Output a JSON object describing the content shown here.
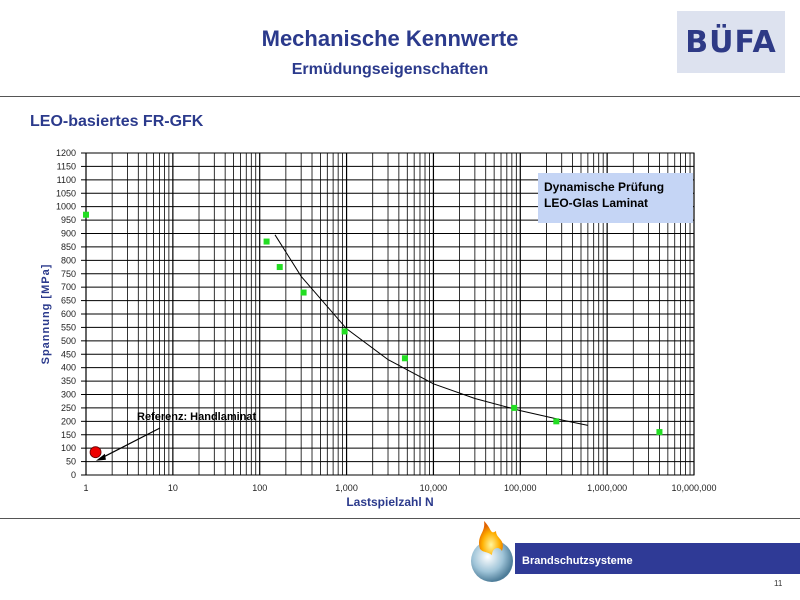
{
  "slide": {
    "title": "Mechanische  Kennwerte",
    "subtitle": "Ermüdungseigenschaften",
    "section_title": "LEO-basiertes FR-GFK",
    "logo_text": "BÜFA",
    "footer_text": "Brandschutzsysteme",
    "page_number": "11"
  },
  "colors": {
    "title": "#2b3a8c",
    "marker_green": "#22dd22",
    "reference_red": "#ee0000",
    "legend_bg": "#c5d5f5",
    "footer_bar": "#2f3a96"
  },
  "chart_data": {
    "type": "scatter",
    "x_scale": "log",
    "xlabel": "Lastspielzahl N",
    "ylabel": "Spannung [MPa]",
    "xlim": [
      1,
      10000000
    ],
    "ylim": [
      0,
      1200
    ],
    "x_ticks": [
      1,
      10,
      100,
      1000,
      10000,
      100000,
      1000000,
      10000000
    ],
    "x_tick_labels": [
      "1",
      "10",
      "100",
      "1,000",
      "10,000",
      "100,000",
      "1,000,000",
      "10,000,000"
    ],
    "y_ticks": [
      0,
      50,
      100,
      150,
      200,
      250,
      300,
      350,
      400,
      450,
      500,
      550,
      600,
      650,
      700,
      750,
      800,
      850,
      900,
      950,
      1000,
      1050,
      1100,
      1150,
      1200
    ],
    "grid": true,
    "legend_text": [
      "Dynamische Prüfung",
      "LEO-Glas  Laminat"
    ],
    "legend_position": "top-right",
    "series": [
      {
        "marker": "square",
        "color": "#22dd22",
        "points": [
          {
            "x": 1,
            "y": 970
          },
          {
            "x": 120,
            "y": 870
          },
          {
            "x": 170,
            "y": 775
          },
          {
            "x": 320,
            "y": 680
          },
          {
            "x": 950,
            "y": 535
          },
          {
            "x": 4700,
            "y": 435
          },
          {
            "x": 85000,
            "y": 250
          },
          {
            "x": 260000,
            "y": 200
          },
          {
            "x": 4000000,
            "y": 160
          }
        ]
      },
      {
        "marker": "circle",
        "color": "#ee0000",
        "points": [
          {
            "x": 1.07,
            "y": 85
          }
        ]
      }
    ],
    "trendline": {
      "type": "power",
      "points": [
        {
          "x": 150,
          "y": 895
        },
        {
          "x": 300,
          "y": 740
        },
        {
          "x": 1000,
          "y": 545
        },
        {
          "x": 3000,
          "y": 430
        },
        {
          "x": 10000,
          "y": 340
        },
        {
          "x": 30000,
          "y": 285
        },
        {
          "x": 100000,
          "y": 240
        },
        {
          "x": 300000,
          "y": 205
        },
        {
          "x": 600000,
          "y": 185
        }
      ]
    },
    "annotation": {
      "text": "Referenz: Handlaminat",
      "arrow_to": {
        "x": 1.3,
        "y": 120
      }
    }
  }
}
